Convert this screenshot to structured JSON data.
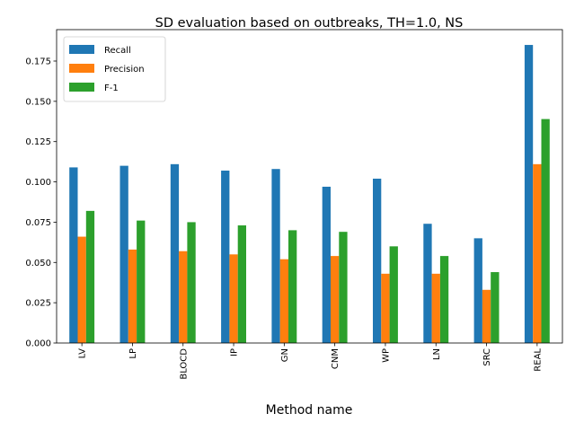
{
  "chart_data": {
    "type": "bar",
    "title": "SD evaluation based on outbreaks, TH=1.0, NS",
    "xlabel": "Method name",
    "ylabel": "",
    "categories": [
      "LV",
      "LP",
      "BLOCD",
      "IP",
      "GN",
      "CNM",
      "WP",
      "LN",
      "SRC",
      "REAL"
    ],
    "series": [
      {
        "name": "Recall",
        "color": "#1f77b4",
        "values": [
          0.109,
          0.11,
          0.111,
          0.107,
          0.108,
          0.097,
          0.102,
          0.074,
          0.065,
          0.185
        ]
      },
      {
        "name": "Precision",
        "color": "#ff7f0e",
        "values": [
          0.066,
          0.058,
          0.057,
          0.055,
          0.052,
          0.054,
          0.043,
          0.043,
          0.033,
          0.111
        ]
      },
      {
        "name": "F-1",
        "color": "#2ca02c",
        "values": [
          0.082,
          0.076,
          0.075,
          0.073,
          0.07,
          0.069,
          0.06,
          0.054,
          0.044,
          0.139
        ]
      }
    ],
    "ylim": [
      0,
      0.1945
    ],
    "yticks": [
      "0.000",
      "0.025",
      "0.050",
      "0.075",
      "0.100",
      "0.125",
      "0.150",
      "0.175"
    ],
    "grid": false,
    "legend": "top-left"
  }
}
